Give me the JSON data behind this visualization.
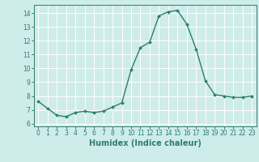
{
  "x": [
    0,
    1,
    2,
    3,
    4,
    5,
    6,
    7,
    8,
    9,
    10,
    11,
    12,
    13,
    14,
    15,
    16,
    17,
    18,
    19,
    20,
    21,
    22,
    23
  ],
  "y": [
    7.6,
    7.1,
    6.6,
    6.5,
    6.8,
    6.9,
    6.8,
    6.9,
    7.2,
    7.5,
    9.9,
    11.5,
    11.9,
    13.8,
    14.1,
    14.2,
    13.2,
    11.4,
    9.1,
    8.1,
    8.0,
    7.9,
    7.9,
    8.0
  ],
  "line_color": "#2e7d6e",
  "marker": "D",
  "marker_size": 2.0,
  "line_width": 1.0,
  "xlabel": "Humidex (Indice chaleur)",
  "xlabel_fontsize": 7,
  "xlim": [
    -0.5,
    23.5
  ],
  "ylim": [
    5.8,
    14.6
  ],
  "yticks": [
    6,
    7,
    8,
    9,
    10,
    11,
    12,
    13,
    14
  ],
  "xticks": [
    0,
    1,
    2,
    3,
    4,
    5,
    6,
    7,
    8,
    9,
    10,
    11,
    12,
    13,
    14,
    15,
    16,
    17,
    18,
    19,
    20,
    21,
    22,
    23
  ],
  "tick_fontsize": 5.5,
  "background_color": "#ceecea",
  "grid_color": "#ffffff",
  "grid_lw": 0.7
}
